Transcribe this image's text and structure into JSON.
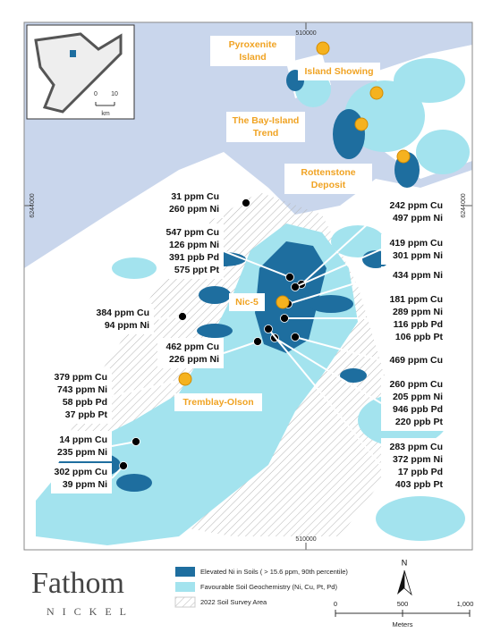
{
  "grid": {
    "easting_top": "510000",
    "easting_bottom": "510000",
    "northing_left": "6244000",
    "northing_right": "6244000"
  },
  "places": [
    "Pyroxenite Island",
    "Island Showing",
    "The Bay-Island Trend",
    "Rottenstone Deposit",
    "Nic-5",
    "Tremblay-Olson"
  ],
  "callouts": [
    {
      "lines": [
        "31 ppm Cu",
        "260 ppm Ni"
      ]
    },
    {
      "lines": [
        "547 ppm Cu",
        "126 ppm Ni",
        "391 ppb Pd",
        "575 ppt Pt"
      ]
    },
    {
      "lines": [
        "384 ppm Cu",
        "94 ppm Ni"
      ]
    },
    {
      "lines": [
        "462 ppm Cu",
        "226 ppm Ni"
      ]
    },
    {
      "lines": [
        "379 ppm Cu",
        "743 ppm Ni",
        "58 ppb Pd",
        "37 ppb Pt"
      ]
    },
    {
      "lines": [
        "14 ppm Cu",
        "235 ppm Ni"
      ]
    },
    {
      "lines": [
        "302 ppm Cu",
        "39 ppm Ni"
      ]
    },
    {
      "lines": [
        "242 ppm Cu",
        "497 ppm Ni"
      ]
    },
    {
      "lines": [
        "419 ppm Cu",
        "301 ppm Ni"
      ]
    },
    {
      "lines": [
        "434 ppm Ni"
      ]
    },
    {
      "lines": [
        "181 ppm Cu",
        "289 ppm Ni",
        "116 ppb Pd",
        "106 ppb Pt"
      ]
    },
    {
      "lines": [
        "469 ppm Cu"
      ]
    },
    {
      "lines": [
        "260 ppm Cu",
        "205 ppm Ni",
        "946 ppb Pd",
        "220 ppb Pt"
      ]
    },
    {
      "lines": [
        "283 ppm Cu",
        "372 ppm Ni",
        "17 ppb Pd",
        "403 ppb Pt"
      ]
    }
  ],
  "inset": {
    "scale_start": "0",
    "scale_end": "10",
    "unit": "km"
  },
  "logo": {
    "name": "Fathom",
    "sub": "NICKEL"
  },
  "legend": [
    "Elevated Ni in Soils ( > 15.6 ppm, 90th percentile)",
    "Favourable Soil Geochemistry (Ni, Cu, Pt, Pd)",
    "2022 Soil Survey Area"
  ],
  "north": "N",
  "scale": {
    "ticks": [
      "0",
      "500",
      "1,000"
    ],
    "unit": "Meters"
  }
}
